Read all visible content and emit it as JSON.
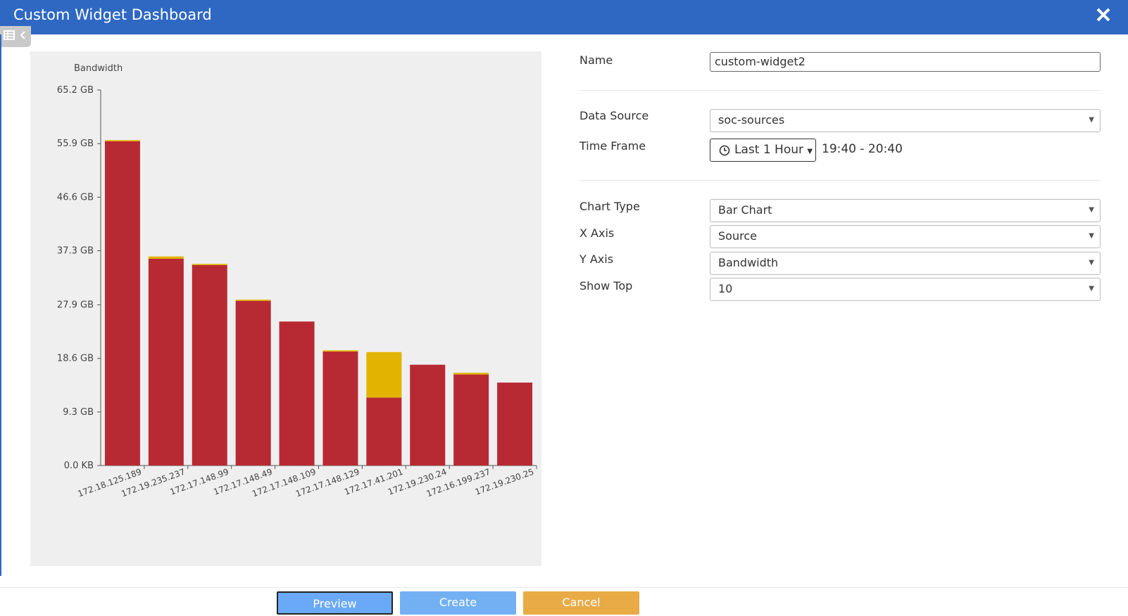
{
  "header": {
    "title": "Custom Widget Dashboard"
  },
  "chart_data": {
    "type": "bar",
    "stacked": true,
    "y_label": "Bandwidth",
    "categories": [
      "172.18.125.189",
      "172.19.235.237",
      "172.17.148.99",
      "172.17.148.49",
      "172.17.148.109",
      "172.17.148.129",
      "172.17.41.201",
      "172.19.230.24",
      "172.16.199.237",
      "172.19.230.25"
    ],
    "series": [
      {
        "color": "#b82a33",
        "values": [
          56.3,
          35.9,
          34.8,
          28.6,
          25.0,
          19.8,
          11.8,
          17.5,
          15.8,
          14.4
        ]
      },
      {
        "color": "#e2b300",
        "values": [
          0.2,
          0.4,
          0.2,
          0.2,
          0,
          0.2,
          7.9,
          0,
          0.3,
          0
        ]
      }
    ],
    "ylim": [
      0,
      65.2
    ],
    "yticks": [
      {
        "value": 0,
        "label": "0.0 KB"
      },
      {
        "value": 9.3,
        "label": "9.3 GB"
      },
      {
        "value": 18.6,
        "label": "18.6 GB"
      },
      {
        "value": 27.9,
        "label": "27.9 GB"
      },
      {
        "value": 37.3,
        "label": "37.3 GB"
      },
      {
        "value": 46.6,
        "label": "46.6 GB"
      },
      {
        "value": 55.9,
        "label": "55.9 GB"
      },
      {
        "value": 65.2,
        "label": "65.2 GB"
      }
    ],
    "grid": false
  },
  "form": {
    "name": {
      "label": "Name",
      "value": "custom-widget2"
    },
    "data_source": {
      "label": "Data Source",
      "value": "soc-sources"
    },
    "time_frame": {
      "label": "Time Frame",
      "button": "Last 1 Hour",
      "range": "19:40 - 20:40"
    },
    "chart_type": {
      "label": "Chart Type",
      "value": "Bar Chart"
    },
    "x_axis": {
      "label": "X Axis",
      "value": "Source"
    },
    "y_axis": {
      "label": "Y Axis",
      "value": "Bandwidth"
    },
    "show_top": {
      "label": "Show Top",
      "value": "10"
    }
  },
  "buttons": {
    "preview": "Preview",
    "create": "Create",
    "cancel": "Cancel"
  }
}
